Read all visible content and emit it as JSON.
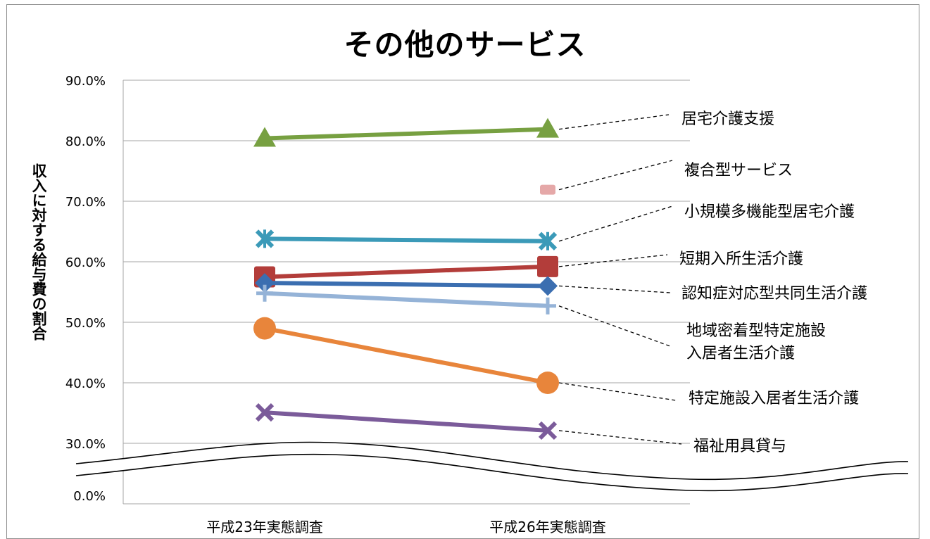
{
  "chart_data": {
    "type": "line",
    "title": "その他のサービス",
    "ylabel": "収入に対する給与費の割合",
    "categories": [
      "平成23年実態調査",
      "平成26年実態調査"
    ],
    "y_ticks": [
      "90.0%",
      "80.0%",
      "70.0%",
      "60.0%",
      "50.0%",
      "40.0%",
      "30.0%",
      "0.0%"
    ],
    "ylim": [
      30,
      90
    ],
    "axis_break": "between 0.0% and 30.0%",
    "grid": true,
    "series": [
      {
        "name": "居宅介護支援",
        "values": [
          80.4,
          81.9
        ],
        "color": "#77a041",
        "marker": "triangle"
      },
      {
        "name": "複合型サービス",
        "values": [
          null,
          71.9
        ],
        "color": "#e5a8a8",
        "marker": "square-small"
      },
      {
        "name": "小規模多機能型居宅介護",
        "values": [
          63.8,
          63.4
        ],
        "color": "#3b9ab8",
        "marker": "asterisk"
      },
      {
        "name": "短期入所生活介護",
        "values": [
          57.5,
          59.2
        ],
        "color": "#b33d3a",
        "marker": "square"
      },
      {
        "name": "認知症対応型共同生活介護",
        "values": [
          56.5,
          56.0
        ],
        "color": "#3b6eb0",
        "marker": "diamond"
      },
      {
        "name": "地域密着型特定施設 入居者生活介護",
        "label_lines": [
          "地域密着型特定施設",
          "入居者生活介護"
        ],
        "values": [
          54.8,
          52.7
        ],
        "color": "#95b3d7",
        "marker": "plus"
      },
      {
        "name": "特定施設入居者生活介護",
        "values": [
          49.0,
          40.0
        ],
        "color": "#e8853b",
        "marker": "circle"
      },
      {
        "name": "福祉用具貸与",
        "values": [
          35.1,
          32.1
        ],
        "color": "#7b5b9a",
        "marker": "x"
      }
    ]
  }
}
